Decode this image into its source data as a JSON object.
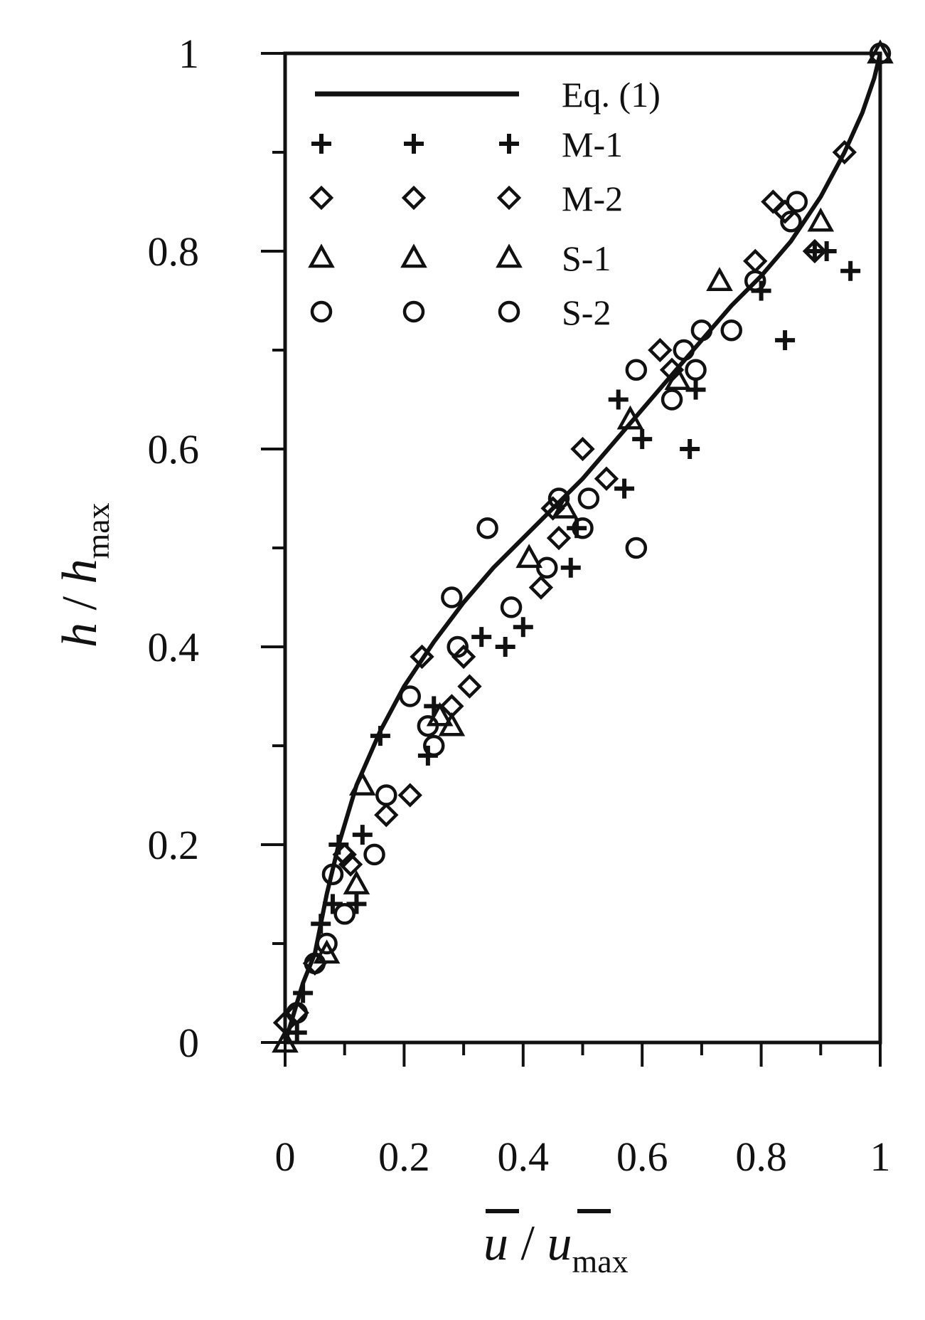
{
  "chart_data": {
    "type": "scatter",
    "title": "",
    "xlim": [
      0,
      1
    ],
    "ylim": [
      0,
      1
    ],
    "grid": false,
    "legend_position": "top-left",
    "x_ticks": [
      "0",
      "0.2",
      "0.4",
      "0.6",
      "0.8",
      "1"
    ],
    "y_ticks": [
      "0",
      "0.2",
      "0.4",
      "0.6",
      "0.8",
      "1"
    ],
    "xlabel": {
      "main": "u",
      "sep": " / ",
      "main2": "u",
      "sub": "max"
    },
    "ylabel": {
      "main": "h",
      "sep": " / ",
      "main2": "h",
      "sub": "max"
    },
    "fit_line": {
      "name": "Eq. (1)",
      "x": [
        0,
        0.01,
        0.02,
        0.03,
        0.05,
        0.07,
        0.09,
        0.12,
        0.16,
        0.2,
        0.25,
        0.3,
        0.35,
        0.4,
        0.45,
        0.5,
        0.55,
        0.6,
        0.65,
        0.7,
        0.75,
        0.8,
        0.85,
        0.9,
        0.94,
        0.97,
        0.99,
        1.0
      ],
      "y": [
        0,
        0.02,
        0.04,
        0.06,
        0.09,
        0.15,
        0.2,
        0.26,
        0.315,
        0.36,
        0.405,
        0.445,
        0.48,
        0.51,
        0.54,
        0.57,
        0.605,
        0.64,
        0.675,
        0.71,
        0.745,
        0.775,
        0.81,
        0.855,
        0.9,
        0.94,
        0.975,
        1.0
      ]
    },
    "series": [
      {
        "name": "M-1",
        "marker": "plus",
        "x": [
          0.02,
          0.03,
          0.06,
          0.08,
          0.09,
          0.12,
          0.13,
          0.16,
          0.24,
          0.25,
          0.33,
          0.37,
          0.4,
          0.48,
          0.49,
          0.56,
          0.57,
          0.6,
          0.68,
          0.69,
          0.8,
          0.84,
          0.89,
          0.91,
          0.95
        ],
        "y": [
          0.01,
          0.05,
          0.12,
          0.14,
          0.2,
          0.14,
          0.21,
          0.31,
          0.29,
          0.34,
          0.41,
          0.4,
          0.42,
          0.48,
          0.52,
          0.65,
          0.56,
          0.61,
          0.6,
          0.66,
          0.76,
          0.71,
          0.8,
          0.8,
          0.78
        ]
      },
      {
        "name": "M-2",
        "marker": "diamond",
        "x": [
          0.0,
          0.02,
          0.05,
          0.1,
          0.11,
          0.17,
          0.21,
          0.23,
          0.28,
          0.3,
          0.31,
          0.43,
          0.45,
          0.46,
          0.5,
          0.54,
          0.63,
          0.65,
          0.79,
          0.82,
          0.84,
          0.89,
          0.94
        ],
        "y": [
          0.02,
          0.03,
          0.08,
          0.19,
          0.18,
          0.23,
          0.25,
          0.39,
          0.34,
          0.39,
          0.36,
          0.46,
          0.54,
          0.51,
          0.6,
          0.57,
          0.7,
          0.68,
          0.79,
          0.85,
          0.84,
          0.8,
          0.9
        ]
      },
      {
        "name": "S-1",
        "marker": "triangle",
        "x": [
          0.0,
          0.07,
          0.12,
          0.13,
          0.26,
          0.28,
          0.41,
          0.47,
          0.58,
          0.66,
          0.73,
          0.9,
          1.0
        ],
        "y": [
          0.0,
          0.09,
          0.16,
          0.26,
          0.33,
          0.32,
          0.49,
          0.54,
          0.63,
          0.67,
          0.77,
          0.83,
          1.0
        ]
      },
      {
        "name": "S-2",
        "marker": "circle",
        "x": [
          0.02,
          0.05,
          0.07,
          0.08,
          0.1,
          0.15,
          0.17,
          0.21,
          0.24,
          0.25,
          0.28,
          0.29,
          0.34,
          0.38,
          0.44,
          0.46,
          0.5,
          0.51,
          0.59,
          0.59,
          0.65,
          0.67,
          0.69,
          0.7,
          0.75,
          0.79,
          0.85,
          0.86,
          1.0
        ],
        "y": [
          0.03,
          0.08,
          0.1,
          0.17,
          0.13,
          0.19,
          0.25,
          0.35,
          0.32,
          0.3,
          0.45,
          0.4,
          0.52,
          0.44,
          0.48,
          0.55,
          0.52,
          0.55,
          0.5,
          0.68,
          0.65,
          0.7,
          0.68,
          0.72,
          0.72,
          0.77,
          0.83,
          0.85,
          1.0
        ]
      }
    ]
  }
}
